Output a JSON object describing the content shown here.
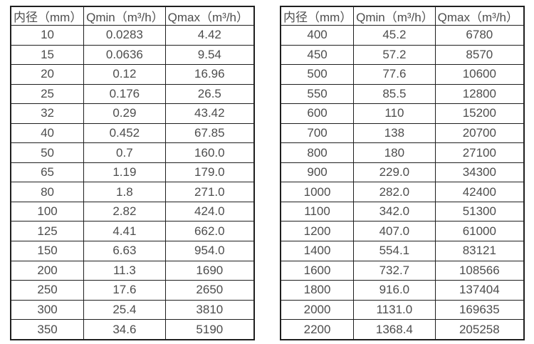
{
  "tables": [
    {
      "headers": [
        "内径（mm）",
        "Qmin（m³/h）",
        "Qmax（m³/h）"
      ],
      "rows": [
        [
          "10",
          "0.0283",
          "4.42"
        ],
        [
          "15",
          "0.0636",
          "9.54"
        ],
        [
          "20",
          "0.12",
          "16.96"
        ],
        [
          "25",
          "0.176",
          "26.5"
        ],
        [
          "32",
          "0.29",
          "43.42"
        ],
        [
          "40",
          "0.452",
          "67.85"
        ],
        [
          "50",
          "0.7",
          "160.0"
        ],
        [
          "65",
          "1.19",
          "179.0"
        ],
        [
          "80",
          "1.8",
          "271.0"
        ],
        [
          "100",
          "2.82",
          "424.0"
        ],
        [
          "125",
          "4.41",
          "662.0"
        ],
        [
          "150",
          "6.63",
          "954.0"
        ],
        [
          "200",
          "11.3",
          "1690"
        ],
        [
          "250",
          "17.6",
          "2650"
        ],
        [
          "300",
          "25.4",
          "3810"
        ],
        [
          "350",
          "34.6",
          "5190"
        ]
      ]
    },
    {
      "headers": [
        "内径（mm）",
        "Qmin（m³/h）",
        "Qmax（m³/h）"
      ],
      "rows": [
        [
          "400",
          "45.2",
          "6780"
        ],
        [
          "450",
          "57.2",
          "8570"
        ],
        [
          "500",
          "77.6",
          "10600"
        ],
        [
          "550",
          "85.5",
          "12800"
        ],
        [
          "600",
          "110",
          "15200"
        ],
        [
          "700",
          "138",
          "20700"
        ],
        [
          "800",
          "180",
          "27100"
        ],
        [
          "900",
          "229.0",
          "34300"
        ],
        [
          "1000",
          "282.0",
          "42400"
        ],
        [
          "1100",
          "342.0",
          "51300"
        ],
        [
          "1200",
          "407.0",
          "61000"
        ],
        [
          "1400",
          "554.1",
          "83121"
        ],
        [
          "1600",
          "732.7",
          "108566"
        ],
        [
          "1800",
          "916.0",
          "137404"
        ],
        [
          "2000",
          "1131.0",
          "169635"
        ],
        [
          "2200",
          "1368.4",
          "205258"
        ]
      ]
    }
  ],
  "colors": {
    "border": "#1f1f1f",
    "text": "#4d4d4d",
    "background": "#ffffff"
  }
}
